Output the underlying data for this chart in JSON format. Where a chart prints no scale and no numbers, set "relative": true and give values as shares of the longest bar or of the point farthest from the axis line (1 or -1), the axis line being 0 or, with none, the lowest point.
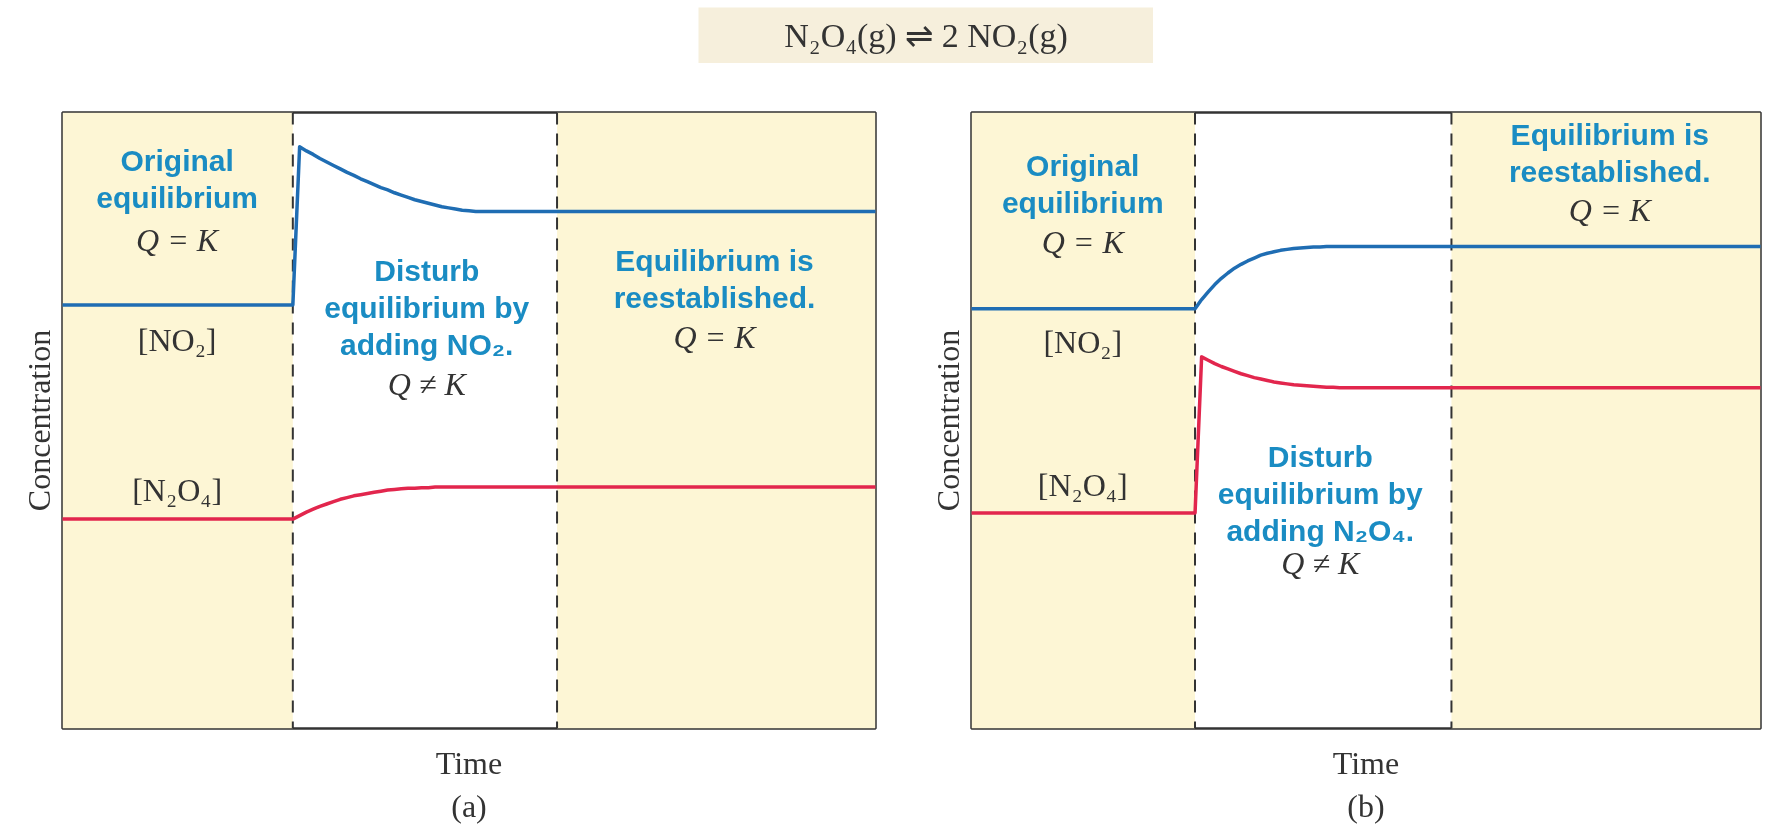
{
  "chart_data": [
    {
      "type": "other",
      "title": "N₂O₄(g) ⇌ 2 NO₂(g)"
    },
    {
      "type": "line",
      "relative": true,
      "xlabel": "Time",
      "ylabel": "Concentration",
      "categories": [
        null,
        null,
        null,
        null,
        null,
        null,
        null,
        null,
        null,
        null,
        null,
        null,
        null,
        null,
        null,
        null,
        null,
        null,
        null,
        null,
        null,
        null,
        null,
        null,
        null,
        null,
        null,
        null,
        null,
        null,
        null,
        null,
        null,
        null,
        null,
        null,
        null,
        null,
        null,
        null,
        null,
        null,
        null,
        null,
        null,
        null,
        null,
        null,
        null,
        null,
        null,
        null,
        null,
        null,
        null,
        null,
        null,
        null,
        null,
        null,
        null,
        null,
        null,
        null,
        null,
        null,
        null,
        null,
        null,
        null,
        null,
        null,
        null,
        null,
        null,
        null,
        null,
        null,
        null,
        null,
        null,
        null,
        null,
        null,
        null,
        null,
        null,
        null,
        null,
        null,
        null,
        null,
        null,
        null,
        null,
        null,
        null,
        null,
        null,
        null,
        null,
        null,
        null,
        null,
        null,
        null,
        null,
        null,
        null,
        null,
        null,
        null,
        null,
        null,
        null,
        null,
        null,
        null,
        null,
        null,
        null
      ],
      "series": [
        {
          "name": "[NO₂]",
          "color": "#1f6db3",
          "values": [
            0.728,
            0.728,
            0.728,
            0.728,
            0.728,
            0.728,
            0.728,
            0.728,
            0.728,
            0.728,
            0.728,
            0.728,
            0.728,
            0.728,
            0.728,
            0.728,
            0.728,
            0.728,
            0.728,
            0.728,
            0.728,
            0.728,
            0.728,
            0.728,
            0.728,
            0.728,
            0.728,
            0.728,
            0.728,
            0.728,
            0.728,
            0.728,
            0.728,
            0.728,
            0.728,
            1,
            0.993,
            0.987,
            0.98,
            0.974,
            0.968,
            0.962,
            0.956,
            0.951,
            0.945,
            0.94,
            0.935,
            0.93,
            0.926,
            0.921,
            0.917,
            0.913,
            0.909,
            0.906,
            0.903,
            0.9,
            0.897,
            0.895,
            0.893,
            0.891,
            0.89,
            0.889,
            0.889,
            0.889,
            0.889,
            0.889,
            0.889,
            0.889,
            0.889,
            0.889,
            0.889,
            0.889,
            0.889,
            0.889,
            0.889,
            0.889,
            0.889,
            0.889,
            0.889,
            0.889,
            0.889,
            0.889,
            0.889,
            0.889,
            0.889,
            0.889,
            0.889,
            0.889,
            0.889,
            0.889,
            0.889,
            0.889,
            0.889,
            0.889,
            0.889,
            0.889,
            0.889,
            0.889,
            0.889,
            0.889,
            0.889,
            0.889,
            0.889,
            0.889,
            0.889,
            0.889,
            0.889,
            0.889,
            0.889,
            0.889,
            0.889,
            0.889,
            0.889,
            0.889,
            0.889,
            0.889,
            0.889,
            0.889,
            0.889,
            0.889,
            0.889
          ]
        },
        {
          "name": "[N₂O₄]",
          "color": "#e2264d",
          "values": [
            0.36,
            0.36,
            0.36,
            0.36,
            0.36,
            0.36,
            0.36,
            0.36,
            0.36,
            0.36,
            0.36,
            0.36,
            0.36,
            0.36,
            0.36,
            0.36,
            0.36,
            0.36,
            0.36,
            0.36,
            0.36,
            0.36,
            0.36,
            0.36,
            0.36,
            0.36,
            0.36,
            0.36,
            0.36,
            0.36,
            0.36,
            0.36,
            0.36,
            0.36,
            0.36,
            0.366,
            0.372,
            0.377,
            0.382,
            0.386,
            0.39,
            0.394,
            0.397,
            0.4,
            0.402,
            0.404,
            0.406,
            0.408,
            0.41,
            0.411,
            0.412,
            0.413,
            0.413,
            0.414,
            0.414,
            0.415,
            0.415,
            0.415,
            0.415,
            0.415,
            0.415,
            0.415,
            0.415,
            0.415,
            0.415,
            0.415,
            0.415,
            0.415,
            0.415,
            0.415,
            0.415,
            0.415,
            0.415,
            0.415,
            0.415,
            0.415,
            0.415,
            0.415,
            0.415,
            0.415,
            0.415,
            0.415,
            0.415,
            0.415,
            0.415,
            0.415,
            0.415,
            0.415,
            0.415,
            0.415,
            0.415,
            0.415,
            0.415,
            0.415,
            0.415,
            0.415,
            0.415,
            0.415,
            0.415,
            0.415,
            0.415,
            0.415,
            0.415,
            0.415,
            0.415,
            0.415,
            0.415,
            0.415,
            0.415,
            0.415,
            0.415,
            0.415,
            0.415,
            0.415,
            0.415,
            0.415,
            0.415,
            0.415,
            0.415,
            0.415,
            0.415
          ]
        }
      ],
      "annotations": [
        "Original equilibrium",
        "Q = K",
        "Disturb equilibrium by adding NO₂.",
        "Q ≠ K",
        "Equilibrium is reestablished.",
        "Q = K",
        "(a)"
      ]
    },
    {
      "type": "line",
      "relative": true,
      "xlabel": "Time",
      "ylabel": "Concentration",
      "categories": [
        null,
        null,
        null,
        null,
        null,
        null,
        null,
        null,
        null,
        null,
        null,
        null,
        null,
        null,
        null,
        null,
        null,
        null,
        null,
        null,
        null,
        null,
        null,
        null,
        null,
        null,
        null,
        null,
        null,
        null,
        null,
        null,
        null,
        null,
        null,
        null,
        null,
        null,
        null,
        null,
        null,
        null,
        null,
        null,
        null,
        null,
        null,
        null,
        null,
        null,
        null,
        null,
        null,
        null,
        null,
        null,
        null,
        null,
        null,
        null,
        null,
        null,
        null,
        null,
        null,
        null,
        null,
        null,
        null,
        null,
        null,
        null,
        null,
        null,
        null,
        null,
        null,
        null,
        null,
        null,
        null,
        null,
        null,
        null,
        null,
        null,
        null,
        null,
        null,
        null,
        null,
        null,
        null,
        null,
        null,
        null,
        null,
        null,
        null,
        null,
        null,
        null,
        null,
        null,
        null,
        null,
        null,
        null,
        null,
        null,
        null,
        null,
        null,
        null,
        null,
        null,
        null,
        null,
        null,
        null,
        null
      ],
      "series": [
        {
          "name": "[NO₂]",
          "color": "#1f6db3",
          "values": [
            0.871,
            0.871,
            0.871,
            0.871,
            0.871,
            0.871,
            0.871,
            0.871,
            0.871,
            0.871,
            0.871,
            0.871,
            0.871,
            0.871,
            0.871,
            0.871,
            0.871,
            0.871,
            0.871,
            0.871,
            0.871,
            0.871,
            0.871,
            0.871,
            0.871,
            0.871,
            0.871,
            0.871,
            0.871,
            0.871,
            0.871,
            0.871,
            0.871,
            0.871,
            0.871,
            0.89,
            0.906,
            0.921,
            0.934,
            0.945,
            0.955,
            0.963,
            0.97,
            0.976,
            0.982,
            0.986,
            0.989,
            0.992,
            0.994,
            0.996,
            0.997,
            0.998,
            0.999,
            0.999,
            1,
            1,
            1,
            1,
            1,
            1,
            1,
            1,
            1,
            1,
            1,
            1,
            1,
            1,
            1,
            1,
            1,
            1,
            1,
            1,
            1,
            1,
            1,
            1,
            1,
            1,
            1,
            1,
            1,
            1,
            1,
            1,
            1,
            1,
            1,
            1,
            1,
            1,
            1,
            1,
            1,
            1,
            1,
            1,
            1,
            1,
            1,
            1,
            1,
            1,
            1,
            1,
            1,
            1,
            1,
            1,
            1,
            1,
            1,
            1,
            1,
            1,
            1,
            1,
            1,
            1,
            1
          ]
        },
        {
          "name": "[N₂O₄]",
          "color": "#e2264d",
          "values": [
            0.447,
            0.447,
            0.447,
            0.447,
            0.447,
            0.447,
            0.447,
            0.447,
            0.447,
            0.447,
            0.447,
            0.447,
            0.447,
            0.447,
            0.447,
            0.447,
            0.447,
            0.447,
            0.447,
            0.447,
            0.447,
            0.447,
            0.447,
            0.447,
            0.447,
            0.447,
            0.447,
            0.447,
            0.447,
            0.447,
            0.447,
            0.447,
            0.447,
            0.447,
            0.447,
            0.771,
            0.764,
            0.757,
            0.751,
            0.746,
            0.741,
            0.736,
            0.732,
            0.728,
            0.725,
            0.722,
            0.719,
            0.717,
            0.715,
            0.713,
            0.712,
            0.711,
            0.71,
            0.709,
            0.708,
            0.708,
            0.707,
            0.707,
            0.707,
            0.707,
            0.707,
            0.707,
            0.707,
            0.707,
            0.707,
            0.707,
            0.707,
            0.707,
            0.707,
            0.707,
            0.707,
            0.707,
            0.707,
            0.707,
            0.707,
            0.707,
            0.707,
            0.707,
            0.707,
            0.707,
            0.707,
            0.707,
            0.707,
            0.707,
            0.707,
            0.707,
            0.707,
            0.707,
            0.707,
            0.707,
            0.707,
            0.707,
            0.707,
            0.707,
            0.707,
            0.707,
            0.707,
            0.707,
            0.707,
            0.707,
            0.707,
            0.707,
            0.707,
            0.707,
            0.707,
            0.707,
            0.707,
            0.707,
            0.707,
            0.707,
            0.707,
            0.707,
            0.707,
            0.707,
            0.707,
            0.707,
            0.707,
            0.707,
            0.707,
            0.707,
            0.707
          ]
        }
      ],
      "annotations": [
        "Original equilibrium",
        "Q = K",
        "Disturb equilibrium by adding N₂O₄.",
        "Q ≠ K",
        "Equilibrium is reestablished.",
        "Q = K",
        "(b)"
      ]
    }
  ]
}
